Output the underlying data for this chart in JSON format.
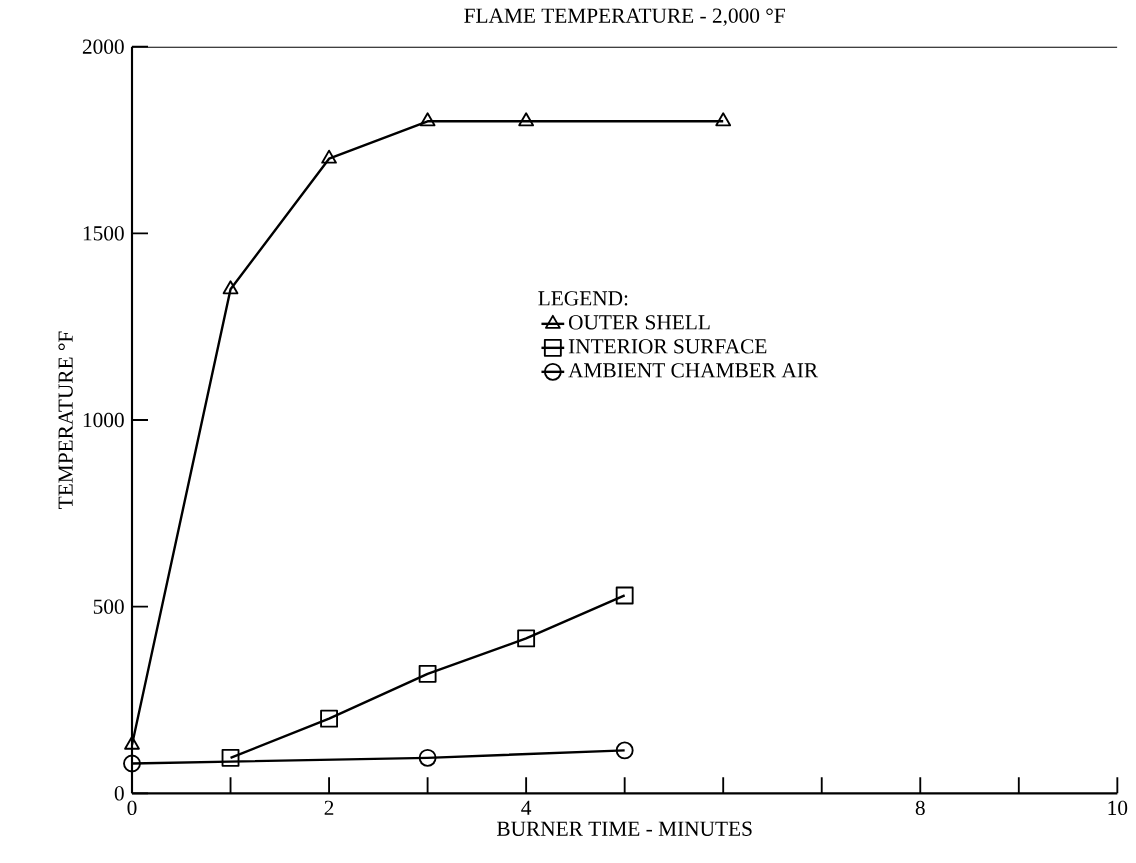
{
  "chart_data": {
    "type": "line",
    "title": "FLAME TEMPERATURE - 2,000 °F",
    "xlabel": "BURNER TIME - MINUTES",
    "ylabel": "TEMPERATURE °F",
    "legend_title": "LEGEND:",
    "legend": "right",
    "grid": false,
    "line_style": "solid",
    "xlim": [
      0,
      10
    ],
    "ylim": [
      0,
      2000
    ],
    "xticks": [
      0,
      {
        "value": 1,
        "label": null
      },
      2,
      {
        "value": 3,
        "label": null
      },
      4,
      {
        "value": 5,
        "label": null
      },
      {
        "value": 6,
        "label": null
      },
      {
        "value": 7,
        "label": null
      },
      8,
      {
        "value": 9,
        "label": null
      },
      10
    ],
    "yticks": [
      0,
      500,
      1000,
      1500,
      2000
    ],
    "series": [
      {
        "name": "OUTER SHELL",
        "color": "#000000",
        "marker": "triangle",
        "x": [
          0,
          1,
          2,
          3,
          4,
          6
        ],
        "values": [
          130,
          1350,
          1700,
          1800,
          1800,
          1800
        ]
      },
      {
        "name": "INTERIOR SURFACE",
        "color": "#000000",
        "marker": "square",
        "x": [
          1,
          2,
          3,
          4,
          5
        ],
        "values": [
          95,
          200,
          320,
          415,
          530
        ]
      },
      {
        "name": "AMBIENT CHAMBER AIR",
        "color": "#000000",
        "marker": "circle",
        "x": [
          0,
          3,
          5
        ],
        "values": [
          80,
          95,
          115
        ]
      }
    ]
  }
}
